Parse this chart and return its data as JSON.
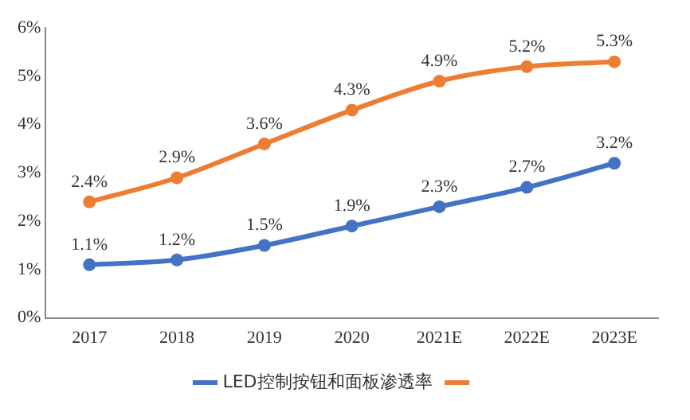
{
  "chart_data": {
    "type": "line",
    "categories": [
      "2017",
      "2018",
      "2019",
      "2020",
      "2021E",
      "2022E",
      "2023E"
    ],
    "series": [
      {
        "name": "LED控制按钮和面板渗透率",
        "color": "#4472c4",
        "values": [
          1.1,
          1.2,
          1.5,
          1.9,
          2.3,
          2.7,
          3.2
        ],
        "value_labels": [
          "1.1%",
          "1.2%",
          "1.5%",
          "1.9%",
          "2.3%",
          "2.7%",
          "3.2%"
        ]
      },
      {
        "color": "#ed7d31",
        "values": [
          2.4,
          2.9,
          3.6,
          4.3,
          4.9,
          5.2,
          5.3
        ],
        "value_labels": [
          "2.4%",
          "2.9%",
          "3.6%",
          "4.3%",
          "4.9%",
          "5.2%",
          "5.3%"
        ]
      }
    ],
    "ylim": [
      0,
      6
    ],
    "yticks": [
      {
        "value": 0,
        "label": "0%"
      },
      {
        "value": 1,
        "label": "1%"
      },
      {
        "value": 2,
        "label": "2%"
      },
      {
        "value": 3,
        "label": "3%"
      },
      {
        "value": 4,
        "label": "4%"
      },
      {
        "value": 5,
        "label": "5%"
      },
      {
        "value": 6,
        "label": "6%"
      }
    ],
    "grid": false,
    "legend": "bottom",
    "marker": "circle",
    "line_style": "solid"
  }
}
